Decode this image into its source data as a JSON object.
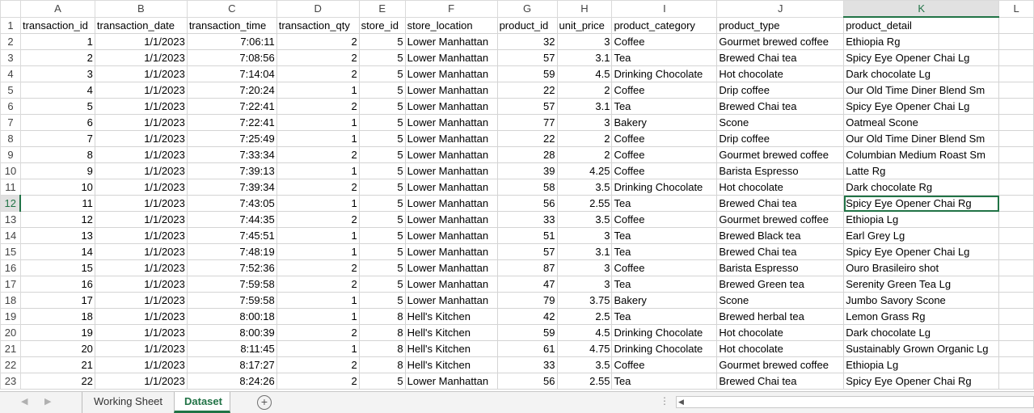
{
  "columns": [
    "",
    "A",
    "B",
    "C",
    "D",
    "E",
    "F",
    "G",
    "H",
    "I",
    "J",
    "K",
    "L"
  ],
  "active_column": "K",
  "active_row": "12",
  "rows": [
    {
      "n": "1",
      "cells": [
        "transaction_id",
        "transaction_date",
        "transaction_time",
        "transaction_qty",
        "store_id",
        "store_location",
        "product_id",
        "unit_price",
        "product_category",
        "product_type",
        "product_detail",
        ""
      ]
    },
    {
      "n": "2",
      "cells": [
        "1",
        "1/1/2023",
        "7:06:11",
        "2",
        "5",
        "Lower Manhattan",
        "32",
        "3",
        "Coffee",
        "Gourmet brewed coffee",
        "Ethiopia Rg",
        ""
      ]
    },
    {
      "n": "3",
      "cells": [
        "2",
        "1/1/2023",
        "7:08:56",
        "2",
        "5",
        "Lower Manhattan",
        "57",
        "3.1",
        "Tea",
        "Brewed Chai tea",
        "Spicy Eye Opener Chai Lg",
        ""
      ]
    },
    {
      "n": "4",
      "cells": [
        "3",
        "1/1/2023",
        "7:14:04",
        "2",
        "5",
        "Lower Manhattan",
        "59",
        "4.5",
        "Drinking Chocolate",
        "Hot chocolate",
        "Dark chocolate Lg",
        ""
      ]
    },
    {
      "n": "5",
      "cells": [
        "4",
        "1/1/2023",
        "7:20:24",
        "1",
        "5",
        "Lower Manhattan",
        "22",
        "2",
        "Coffee",
        "Drip coffee",
        "Our Old Time Diner Blend Sm",
        ""
      ]
    },
    {
      "n": "6",
      "cells": [
        "5",
        "1/1/2023",
        "7:22:41",
        "2",
        "5",
        "Lower Manhattan",
        "57",
        "3.1",
        "Tea",
        "Brewed Chai tea",
        "Spicy Eye Opener Chai Lg",
        ""
      ]
    },
    {
      "n": "7",
      "cells": [
        "6",
        "1/1/2023",
        "7:22:41",
        "1",
        "5",
        "Lower Manhattan",
        "77",
        "3",
        "Bakery",
        "Scone",
        "Oatmeal Scone",
        ""
      ]
    },
    {
      "n": "8",
      "cells": [
        "7",
        "1/1/2023",
        "7:25:49",
        "1",
        "5",
        "Lower Manhattan",
        "22",
        "2",
        "Coffee",
        "Drip coffee",
        "Our Old Time Diner Blend Sm",
        ""
      ]
    },
    {
      "n": "9",
      "cells": [
        "8",
        "1/1/2023",
        "7:33:34",
        "2",
        "5",
        "Lower Manhattan",
        "28",
        "2",
        "Coffee",
        "Gourmet brewed coffee",
        "Columbian Medium Roast Sm",
        ""
      ]
    },
    {
      "n": "10",
      "cells": [
        "9",
        "1/1/2023",
        "7:39:13",
        "1",
        "5",
        "Lower Manhattan",
        "39",
        "4.25",
        "Coffee",
        "Barista Espresso",
        "Latte Rg",
        ""
      ]
    },
    {
      "n": "11",
      "cells": [
        "10",
        "1/1/2023",
        "7:39:34",
        "2",
        "5",
        "Lower Manhattan",
        "58",
        "3.5",
        "Drinking Chocolate",
        "Hot chocolate",
        "Dark chocolate Rg",
        ""
      ]
    },
    {
      "n": "12",
      "cells": [
        "11",
        "1/1/2023",
        "7:43:05",
        "1",
        "5",
        "Lower Manhattan",
        "56",
        "2.55",
        "Tea",
        "Brewed Chai tea",
        "Spicy Eye Opener Chai Rg",
        ""
      ]
    },
    {
      "n": "13",
      "cells": [
        "12",
        "1/1/2023",
        "7:44:35",
        "2",
        "5",
        "Lower Manhattan",
        "33",
        "3.5",
        "Coffee",
        "Gourmet brewed coffee",
        "Ethiopia Lg",
        ""
      ]
    },
    {
      "n": "14",
      "cells": [
        "13",
        "1/1/2023",
        "7:45:51",
        "1",
        "5",
        "Lower Manhattan",
        "51",
        "3",
        "Tea",
        "Brewed Black tea",
        "Earl Grey Lg",
        ""
      ]
    },
    {
      "n": "15",
      "cells": [
        "14",
        "1/1/2023",
        "7:48:19",
        "1",
        "5",
        "Lower Manhattan",
        "57",
        "3.1",
        "Tea",
        "Brewed Chai tea",
        "Spicy Eye Opener Chai Lg",
        ""
      ]
    },
    {
      "n": "16",
      "cells": [
        "15",
        "1/1/2023",
        "7:52:36",
        "2",
        "5",
        "Lower Manhattan",
        "87",
        "3",
        "Coffee",
        "Barista Espresso",
        "Ouro Brasileiro shot",
        ""
      ]
    },
    {
      "n": "17",
      "cells": [
        "16",
        "1/1/2023",
        "7:59:58",
        "2",
        "5",
        "Lower Manhattan",
        "47",
        "3",
        "Tea",
        "Brewed Green tea",
        "Serenity Green Tea Lg",
        ""
      ]
    },
    {
      "n": "18",
      "cells": [
        "17",
        "1/1/2023",
        "7:59:58",
        "1",
        "5",
        "Lower Manhattan",
        "79",
        "3.75",
        "Bakery",
        "Scone",
        "Jumbo Savory Scone",
        ""
      ]
    },
    {
      "n": "19",
      "cells": [
        "18",
        "1/1/2023",
        "8:00:18",
        "1",
        "8",
        "Hell's Kitchen",
        "42",
        "2.5",
        "Tea",
        "Brewed herbal tea",
        "Lemon Grass Rg",
        ""
      ]
    },
    {
      "n": "20",
      "cells": [
        "19",
        "1/1/2023",
        "8:00:39",
        "2",
        "8",
        "Hell's Kitchen",
        "59",
        "4.5",
        "Drinking Chocolate",
        "Hot chocolate",
        "Dark chocolate Lg",
        ""
      ]
    },
    {
      "n": "21",
      "cells": [
        "20",
        "1/1/2023",
        "8:11:45",
        "1",
        "8",
        "Hell's Kitchen",
        "61",
        "4.75",
        "Drinking Chocolate",
        "Hot chocolate",
        "Sustainably Grown Organic Lg",
        ""
      ]
    },
    {
      "n": "22",
      "cells": [
        "21",
        "1/1/2023",
        "8:17:27",
        "2",
        "8",
        "Hell's Kitchen",
        "33",
        "3.5",
        "Coffee",
        "Gourmet brewed coffee",
        "Ethiopia Lg",
        ""
      ]
    },
    {
      "n": "23",
      "cells": [
        "22",
        "1/1/2023",
        "8:24:26",
        "2",
        "5",
        "Lower Manhattan",
        "56",
        "2.55",
        "Tea",
        "Brewed Chai tea",
        "Spicy Eye Opener Chai Rg",
        ""
      ]
    }
  ],
  "sheet_tabs": {
    "working_sheet": "Working Sheet",
    "dataset": "Dataset",
    "active": "Dataset"
  },
  "icons": {
    "prev": "◀",
    "next": "▶",
    "add": "+",
    "split": "⋮",
    "scroll_left": "◀"
  },
  "colors": {
    "accent": "#217346",
    "grid_line": "#d4d4d4"
  }
}
